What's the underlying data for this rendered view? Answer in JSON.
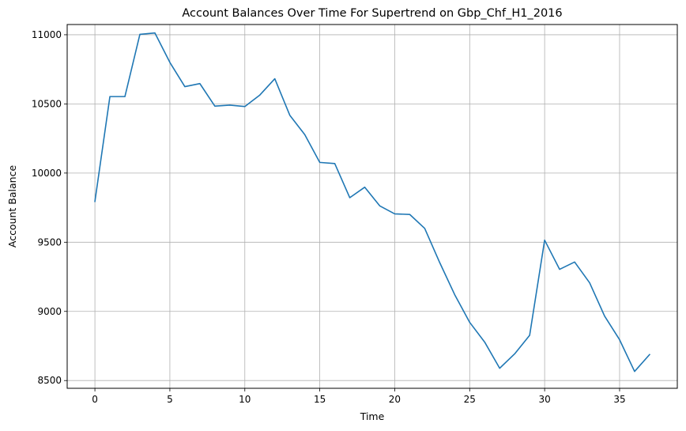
{
  "chart_data": {
    "type": "line",
    "title": "Account Balances Over Time For Supertrend on Gbp_Chf_H1_2016",
    "xlabel": "Time",
    "ylabel": "Account Balance",
    "xlim": [
      -1.85,
      38.85
    ],
    "ylim": [
      8444,
      11074
    ],
    "xticks": [
      0,
      5,
      10,
      15,
      20,
      25,
      30,
      35
    ],
    "yticks": [
      8500,
      9000,
      9500,
      10000,
      10500,
      11000
    ],
    "grid": true,
    "line_color": "#1f77b4",
    "series": [
      {
        "x": [
          0,
          1,
          2,
          3,
          4,
          5,
          6,
          7,
          8,
          9,
          10,
          11,
          12,
          13,
          14,
          15,
          16,
          17,
          18,
          19,
          20,
          21,
          22,
          23,
          24,
          25,
          26,
          27,
          28,
          29,
          30,
          31,
          32,
          33,
          34,
          35,
          36,
          37
        ],
        "values": [
          9795,
          10553,
          10553,
          11003,
          11013,
          10800,
          10625,
          10647,
          10484,
          10491,
          10481,
          10564,
          10682,
          10418,
          10278,
          10077,
          10069,
          9822,
          9898,
          9763,
          9705,
          9701,
          9600,
          9353,
          9121,
          8921,
          8778,
          8589,
          8693,
          8827,
          9515,
          9304,
          9357,
          9207,
          8966,
          8795,
          8566,
          8688
        ]
      }
    ]
  }
}
